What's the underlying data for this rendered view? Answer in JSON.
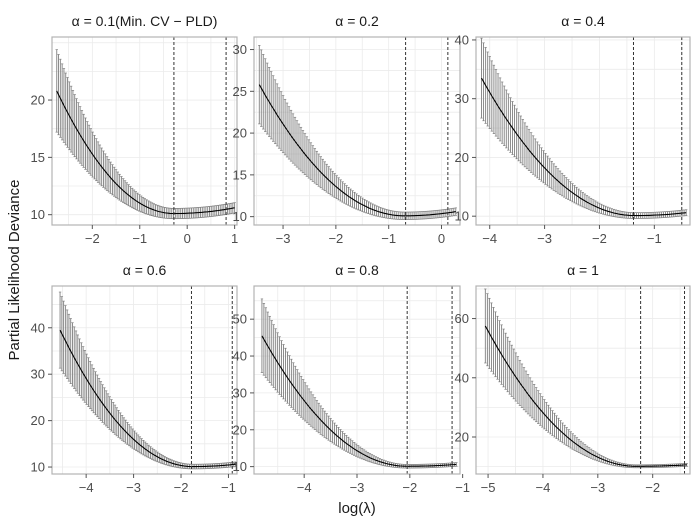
{
  "figure": {
    "xlabel": "log(λ)",
    "ylabel": "Partial Likelihood Deviance"
  },
  "colors": {
    "panel_background": "#ffffff",
    "panel_border": "#b3b3b3",
    "grid": "#ebebeb",
    "line": "#000000",
    "errorbar": "#808080",
    "vline": "#333333"
  },
  "chart_data": [
    {
      "type": "line",
      "title": "α = 0.1(Min. CV − PLD)",
      "xlim": [
        -2.85,
        1.05
      ],
      "ylim": [
        9.1,
        25.5
      ],
      "xticks": [
        -2,
        -1,
        0,
        1
      ],
      "yticks": [
        10,
        15,
        20
      ],
      "x_start": -2.75,
      "x_end": 1.0,
      "y_start": 20.8,
      "y_min": 10.1,
      "x_min": -0.28,
      "y_end": 10.6,
      "halfwidth_start": 3.6,
      "halfwidth_min": 0.45,
      "vlines": [
        -0.28,
        0.82
      ]
    },
    {
      "type": "line",
      "title": "α = 0.2",
      "xlim": [
        -3.55,
        0.35
      ],
      "ylim": [
        9.0,
        31.5
      ],
      "xticks": [
        -3,
        -2,
        -1,
        0
      ],
      "yticks": [
        10,
        15,
        20,
        25,
        30
      ],
      "x_start": -3.45,
      "x_end": 0.27,
      "y_start": 25.8,
      "y_min": 10.1,
      "x_min": -0.7,
      "y_end": 10.6,
      "halfwidth_start": 4.7,
      "halfwidth_min": 0.45,
      "vlines": [
        -0.68,
        0.12
      ]
    },
    {
      "type": "line",
      "title": "α = 0.4",
      "xlim": [
        -4.25,
        -0.35
      ],
      "ylim": [
        8.5,
        40.5
      ],
      "xticks": [
        -4,
        -3,
        -2,
        -1
      ],
      "yticks": [
        10,
        20,
        30,
        40
      ],
      "x_start": -4.15,
      "x_end": -0.42,
      "y_start": 33.5,
      "y_min": 10.1,
      "x_min": -1.35,
      "y_end": 10.6,
      "halfwidth_start": 6.8,
      "halfwidth_min": 0.5,
      "vlines": [
        -1.38,
        -0.5
      ]
    },
    {
      "type": "line",
      "title": "α = 0.6",
      "xlim": [
        -4.72,
        -0.82
      ],
      "ylim": [
        8.5,
        49.0
      ],
      "xticks": [
        -4,
        -3,
        -2,
        -1
      ],
      "yticks": [
        10,
        20,
        30,
        40
      ],
      "x_start": -4.55,
      "x_end": -0.85,
      "y_start": 39.5,
      "y_min": 10.1,
      "x_min": -1.75,
      "y_end": 10.6,
      "halfwidth_start": 8.2,
      "halfwidth_min": 0.5,
      "vlines": [
        -1.78,
        -0.92
      ]
    },
    {
      "type": "line",
      "title": "α = 0.8",
      "xlim": [
        -4.95,
        -1.05
      ],
      "ylim": [
        8.0,
        59.0
      ],
      "xticks": [
        -4,
        -3,
        -2,
        -1
      ],
      "yticks": [
        10,
        20,
        30,
        40,
        50
      ],
      "x_start": -4.8,
      "x_end": -1.12,
      "y_start": 45.5,
      "y_min": 10.1,
      "x_min": -2.05,
      "y_end": 10.6,
      "halfwidth_start": 10.0,
      "halfwidth_min": 0.5,
      "vlines": [
        -2.05,
        -1.2
      ]
    },
    {
      "type": "line",
      "title": "α = 1",
      "xlim": [
        -5.22,
        -1.32
      ],
      "ylim": [
        7.5,
        71.0
      ],
      "xticks": [
        -5,
        -4,
        -3,
        -2
      ],
      "yticks": [
        20,
        40,
        60
      ],
      "x_start": -5.05,
      "x_end": -1.38,
      "y_start": 57.5,
      "y_min": 10.1,
      "x_min": -2.3,
      "y_end": 10.6,
      "halfwidth_start": 12.5,
      "halfwidth_min": 0.5,
      "vlines": [
        -2.22,
        -1.42
      ]
    }
  ]
}
